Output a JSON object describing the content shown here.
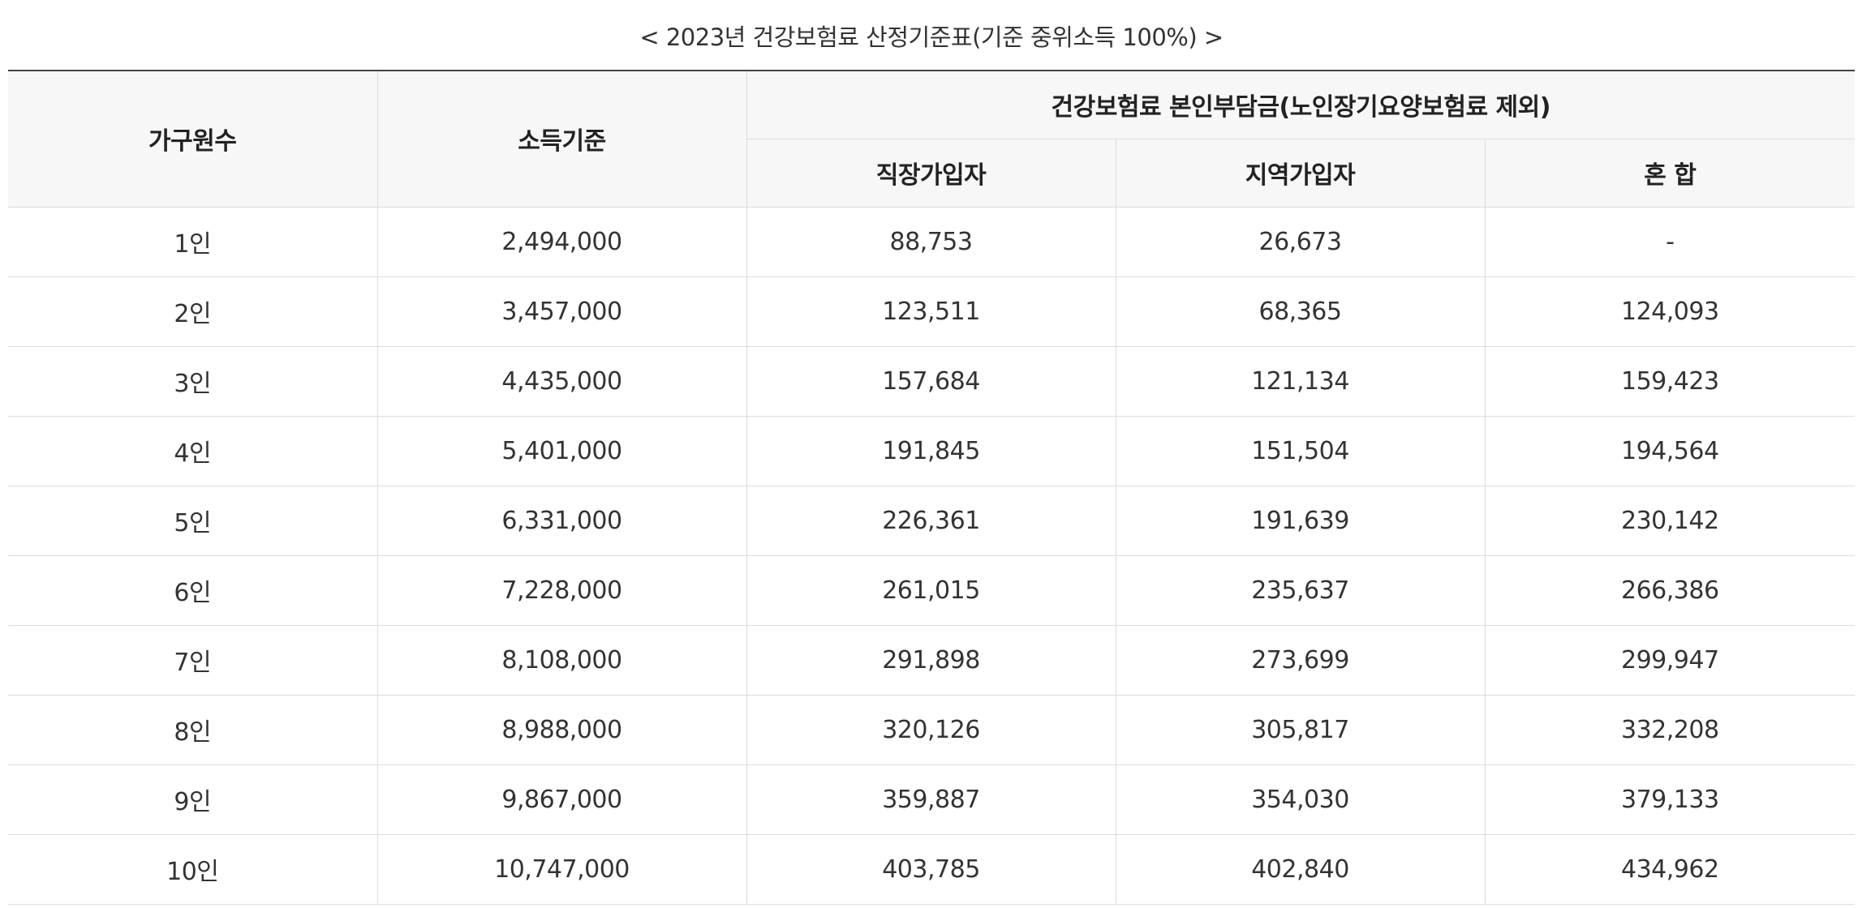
{
  "caption": "< 2023년 건강보험료 산정기준표(기준 중위소득 100%) >",
  "headers": {
    "household": "가구원수",
    "income": "소득기준",
    "premium_group": "건강보험료 본인부담금(노인장기요양보험료 제외)",
    "employee": "직장가입자",
    "regional": "지역가입자",
    "mixed": "혼 합"
  },
  "rows": [
    {
      "household": "1인",
      "income": "2,494,000",
      "employee": "88,753",
      "regional": "26,673",
      "mixed": "-"
    },
    {
      "household": "2인",
      "income": "3,457,000",
      "employee": "123,511",
      "regional": "68,365",
      "mixed": "124,093"
    },
    {
      "household": "3인",
      "income": "4,435,000",
      "employee": "157,684",
      "regional": "121,134",
      "mixed": "159,423"
    },
    {
      "household": "4인",
      "income": "5,401,000",
      "employee": "191,845",
      "regional": "151,504",
      "mixed": "194,564"
    },
    {
      "household": "5인",
      "income": "6,331,000",
      "employee": "226,361",
      "regional": "191,639",
      "mixed": "230,142"
    },
    {
      "household": "6인",
      "income": "7,228,000",
      "employee": "261,015",
      "regional": "235,637",
      "mixed": "266,386"
    },
    {
      "household": "7인",
      "income": "8,108,000",
      "employee": "291,898",
      "regional": "273,699",
      "mixed": "299,947"
    },
    {
      "household": "8인",
      "income": "8,988,000",
      "employee": "320,126",
      "regional": "305,817",
      "mixed": "332,208"
    },
    {
      "household": "9인",
      "income": "9,867,000",
      "employee": "359,887",
      "regional": "354,030",
      "mixed": "379,133"
    },
    {
      "household": "10인",
      "income": "10,747,000",
      "employee": "403,785",
      "regional": "402,840",
      "mixed": "434,962"
    }
  ]
}
